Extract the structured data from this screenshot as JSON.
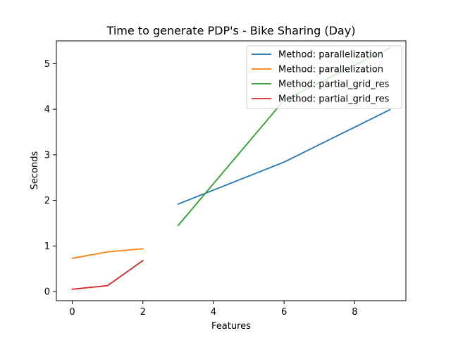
{
  "chart_data": {
    "type": "line",
    "title": "Time to generate PDP's - Bike Sharing (Day)",
    "xlabel": "Features",
    "ylabel": "Seconds",
    "xlim": [
      -0.45,
      9.45
    ],
    "ylim": [
      -0.2,
      5.5
    ],
    "xticks": [
      0,
      2,
      4,
      6,
      8
    ],
    "yticks": [
      0,
      1,
      2,
      3,
      4,
      5
    ],
    "grid": false,
    "legend_position": "top-right",
    "series": [
      {
        "name": "Method: parallelization",
        "color": "#1f77b4",
        "points": [
          [
            3,
            1.92
          ],
          [
            6,
            2.84
          ],
          [
            9,
            3.99
          ]
        ]
      },
      {
        "name": "Method: parallelization",
        "color": "#ff7f0e",
        "points": [
          [
            0,
            0.73
          ],
          [
            1,
            0.87
          ],
          [
            2,
            0.94
          ]
        ]
      },
      {
        "name": "Method: partial_grid_res",
        "color": "#2ca02c",
        "points": [
          [
            3,
            1.45
          ],
          [
            6,
            4.2
          ],
          [
            9,
            5.35
          ]
        ]
      },
      {
        "name": "Method: partial_grid_res",
        "color": "#d62728",
        "points": [
          [
            0,
            0.05
          ],
          [
            1,
            0.13
          ],
          [
            2,
            0.68
          ]
        ]
      }
    ]
  }
}
